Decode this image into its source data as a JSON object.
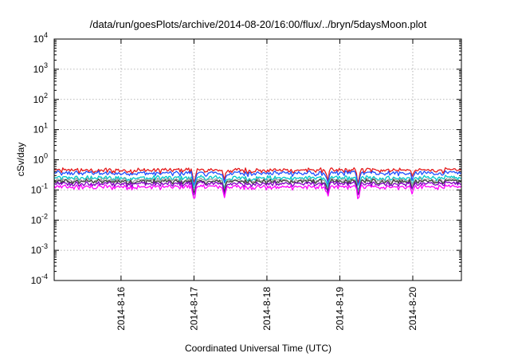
{
  "chart_data": {
    "type": "line",
    "title": "/data/run/goesPlots/archive/2014-08-20/16:00/flux/../bryn/5daysMoon.plot",
    "xlabel": "Coordinated Universal Time (UTC)",
    "ylabel": "cSv/day",
    "y_scale": "log",
    "ylim": [
      0.0001,
      10000
    ],
    "y_ticks": [
      {
        "value": 0.0001,
        "base": "10",
        "exp": "-4"
      },
      {
        "value": 0.001,
        "base": "10",
        "exp": "-3"
      },
      {
        "value": 0.01,
        "base": "10",
        "exp": "-2"
      },
      {
        "value": 0.1,
        "base": "10",
        "exp": "-1"
      },
      {
        "value": 1,
        "base": "10",
        "exp": "0"
      },
      {
        "value": 10,
        "base": "10",
        "exp": "1"
      },
      {
        "value": 100,
        "base": "10",
        "exp": "2"
      },
      {
        "value": 1000,
        "base": "10",
        "exp": "3"
      },
      {
        "value": 10000,
        "base": "10",
        "exp": "4"
      }
    ],
    "xlim": [
      "2014-08-15 02:00",
      "2014-08-20 16:00"
    ],
    "x_tick_labels": [
      {
        "label": "2014-8-16",
        "time": "2014-08-16 00:00"
      },
      {
        "label": "2014-8-17",
        "time": "2014-08-17 00:00"
      },
      {
        "label": "2014-8-18",
        "time": "2014-08-18 00:00"
      },
      {
        "label": "2014-8-19",
        "time": "2014-08-19 00:00"
      },
      {
        "label": "2014-8-20",
        "time": "2014-08-20 00:00"
      }
    ],
    "grid": true,
    "legend": "none",
    "series": [
      {
        "color": "#e41a1c",
        "base": 0.45
      },
      {
        "color": "#2050ff",
        "base": 0.36
      },
      {
        "color": "#00c8c8",
        "base": 0.25
      },
      {
        "color": "#a0a0a0",
        "base": 0.21
      },
      {
        "color": "#404040",
        "base": 0.19
      },
      {
        "color": "#8000c0",
        "base": 0.16
      },
      {
        "color": "#ff00ff",
        "base": 0.125
      }
    ],
    "dips": [
      {
        "time": "2014-08-17 00:00",
        "factor": 0.35
      },
      {
        "time": "2014-08-17 10:00",
        "factor": 0.45
      },
      {
        "time": "2014-08-18 20:00",
        "factor": 0.4
      },
      {
        "time": "2014-08-19 06:00",
        "factor": 0.35
      },
      {
        "time": "2014-08-20 00:00",
        "factor": 0.6
      }
    ]
  }
}
